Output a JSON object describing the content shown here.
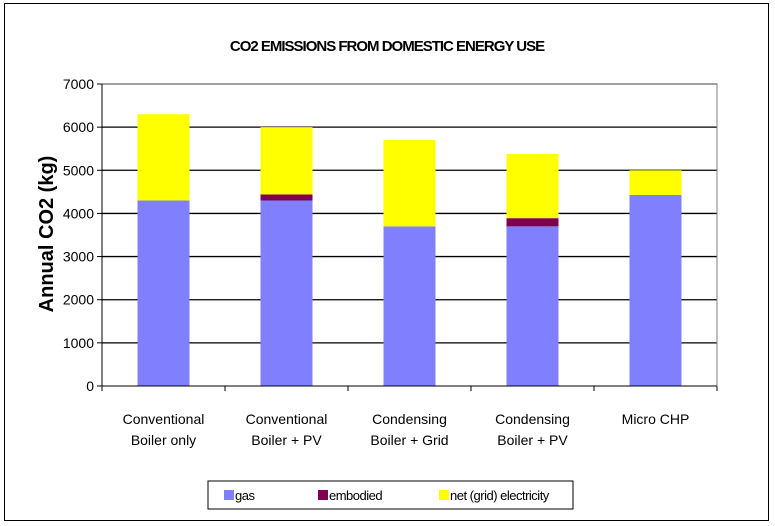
{
  "chart_data": {
    "type": "bar",
    "stacked": true,
    "title": "CO2 EMISSIONS FROM DOMESTIC ENERGY USE",
    "ylabel": "Annual CO2 (kg)",
    "xlabel": "",
    "ylim": [
      0,
      7000
    ],
    "yticks": [
      0,
      1000,
      2000,
      3000,
      4000,
      5000,
      6000,
      7000
    ],
    "grid": true,
    "legend_position": "bottom",
    "categories": [
      [
        "Conventional",
        "Boiler only"
      ],
      [
        "Conventional",
        "Boiler + PV"
      ],
      [
        "Condensing",
        "Boiler + Grid"
      ],
      [
        "Condensing",
        "Boiler + PV"
      ],
      [
        "Micro CHP"
      ]
    ],
    "series": [
      {
        "name": "gas",
        "color": "#8080ff",
        "values": [
          4300,
          4300,
          3700,
          3700,
          4430
        ]
      },
      {
        "name": "embodied",
        "color": "#800050",
        "values": [
          0,
          140,
          0,
          190,
          0
        ]
      },
      {
        "name": "net (grid) electricity",
        "color": "#ffff00",
        "values": [
          2000,
          1560,
          2000,
          1490,
          570
        ]
      }
    ]
  }
}
